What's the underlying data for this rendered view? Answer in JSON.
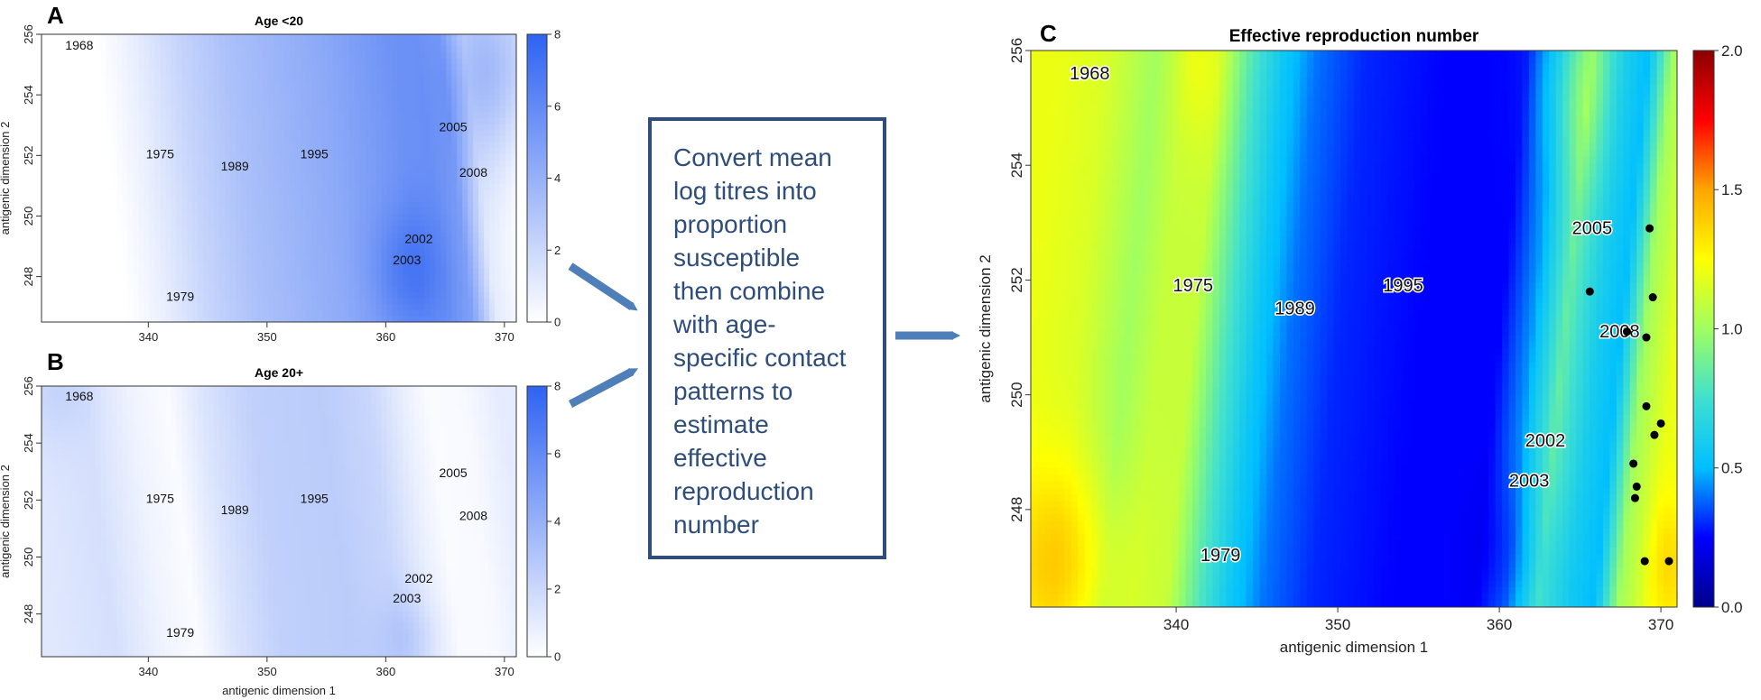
{
  "colors": {
    "blue_scale": [
      "#ffffff",
      "#2e63f2"
    ],
    "jet_scale": [
      "#00008b",
      "#0000ff",
      "#00bfff",
      "#40e0d0",
      "#a0ff60",
      "#ffff00",
      "#ffa500",
      "#ff0000",
      "#8b0000"
    ],
    "arrow": "#4f7fb8",
    "box_border": "#2e4d7b"
  },
  "middle_box": {
    "lines": [
      "Convert mean",
      "log titres into",
      "proportion",
      "susceptible",
      "then combine",
      "with age-",
      "specific contact",
      "patterns to",
      "estimate",
      "effective",
      "reproduction",
      "number"
    ]
  },
  "chart_data": [
    {
      "panel": "A",
      "type": "heatmap",
      "title": "Age <20",
      "xlabel": "",
      "ylabel": "antigenic dimension 2",
      "xlim": [
        331,
        371
      ],
      "ylim": [
        246.5,
        256
      ],
      "xticks": [
        340,
        350,
        360,
        370
      ],
      "yticks": [
        248,
        250,
        252,
        254,
        256
      ],
      "colorbar": {
        "min": 0,
        "max": 8,
        "ticks": [
          0,
          2,
          4,
          6,
          8
        ],
        "scale": "white-blue"
      },
      "x_profile": {
        "x": [
          331,
          337,
          340,
          344,
          348,
          352,
          356,
          360,
          362,
          364,
          366,
          368,
          371
        ],
        "v": [
          0.0,
          0.0,
          0.8,
          2.2,
          3.2,
          3.8,
          4.4,
          5.2,
          5.6,
          5.6,
          4.8,
          1.0,
          0.0
        ]
      },
      "hotspots": [
        {
          "x": 369,
          "y": 255,
          "sx": 3.5,
          "sy": 3.2,
          "v": 3.2
        },
        {
          "x": 362,
          "y": 248.2,
          "sx": 3,
          "sy": 2,
          "v": 1.6
        }
      ],
      "strains": [
        {
          "label": "1968",
          "x": 333,
          "y": 255.5
        },
        {
          "label": "1975",
          "x": 339.8,
          "y": 251.9
        },
        {
          "label": "1979",
          "x": 341.5,
          "y": 247.2
        },
        {
          "label": "1989",
          "x": 346.1,
          "y": 251.5
        },
        {
          "label": "1995",
          "x": 352.8,
          "y": 251.9
        },
        {
          "label": "2005",
          "x": 364.5,
          "y": 252.8
        },
        {
          "label": "2008",
          "x": 366.2,
          "y": 251.3
        },
        {
          "label": "2002",
          "x": 361.6,
          "y": 249.1
        },
        {
          "label": "2003",
          "x": 360.6,
          "y": 248.4
        }
      ]
    },
    {
      "panel": "B",
      "type": "heatmap",
      "title": "Age 20+",
      "xlabel": "antigenic dimension 1",
      "ylabel": "antigenic dimension 2",
      "xlim": [
        331,
        371
      ],
      "ylim": [
        246.5,
        256
      ],
      "xticks": [
        340,
        350,
        360,
        370
      ],
      "yticks": [
        248,
        250,
        252,
        254,
        256
      ],
      "colorbar": {
        "min": 0,
        "max": 8,
        "ticks": [
          0,
          2,
          4,
          6,
          8
        ],
        "scale": "white-blue"
      },
      "x_profile": {
        "x": [
          331,
          336,
          340,
          343,
          346,
          350,
          356,
          360,
          363,
          365,
          368,
          371
        ],
        "v": [
          1.2,
          1.6,
          0.6,
          0.2,
          1.4,
          2.4,
          2.6,
          2.1,
          0.8,
          0.2,
          0.3,
          1.0
        ]
      },
      "hotspots": [
        {
          "x": 362,
          "y": 247.2,
          "sx": 2.5,
          "sy": 1.5,
          "v": 1.0
        },
        {
          "x": 332,
          "y": 256,
          "sx": 3,
          "sy": 2,
          "v": 0.8
        }
      ],
      "strains": [
        {
          "label": "1968",
          "x": 333,
          "y": 255.5
        },
        {
          "label": "1975",
          "x": 339.8,
          "y": 251.9
        },
        {
          "label": "1979",
          "x": 341.5,
          "y": 247.2
        },
        {
          "label": "1989",
          "x": 346.1,
          "y": 251.5
        },
        {
          "label": "1995",
          "x": 352.8,
          "y": 251.9
        },
        {
          "label": "2005",
          "x": 364.5,
          "y": 252.8
        },
        {
          "label": "2008",
          "x": 366.2,
          "y": 251.3
        },
        {
          "label": "2002",
          "x": 361.6,
          "y": 249.1
        },
        {
          "label": "2003",
          "x": 360.6,
          "y": 248.4
        }
      ]
    },
    {
      "panel": "C",
      "type": "heatmap",
      "title": "Effective reproduction number",
      "xlabel": "antigenic dimension 1",
      "ylabel": "antigenic dimension 2",
      "xlim": [
        331,
        371
      ],
      "ylim": [
        246.3,
        256
      ],
      "xticks": [
        340,
        350,
        360,
        370
      ],
      "yticks": [
        248,
        250,
        252,
        254,
        256
      ],
      "colorbar": {
        "min": 0.0,
        "max": 2.0,
        "ticks": [
          0.0,
          0.5,
          1.0,
          1.5,
          2.0
        ],
        "tick_labels": [
          "0.0",
          "0.5",
          "1.0",
          "1.5",
          "2.0"
        ],
        "scale": "jet"
      },
      "x_profile": {
        "x": [
          331,
          334,
          337,
          339,
          341,
          343,
          345,
          347,
          350,
          355,
          360,
          362,
          364,
          366,
          367.5,
          369,
          371
        ],
        "v": [
          1.2,
          1.15,
          1.0,
          1.1,
          1.1,
          0.8,
          0.55,
          0.4,
          0.3,
          0.25,
          0.25,
          0.45,
          0.85,
          0.6,
          0.5,
          1.0,
          1.2
        ]
      },
      "hotspots": [
        {
          "x": 333,
          "y": 247,
          "sx": 3.5,
          "sy": 1.8,
          "v": 0.25
        },
        {
          "x": 364.5,
          "y": 255.5,
          "sx": 2.2,
          "sy": 1.8,
          "v": 0.2
        },
        {
          "x": 341.5,
          "y": 255.8,
          "sx": 1.6,
          "sy": 1.5,
          "v": 0.1
        },
        {
          "x": 361.5,
          "y": 247,
          "sx": 2.5,
          "sy": 1.5,
          "v": -0.12
        },
        {
          "x": 370.5,
          "y": 247,
          "sx": 1.2,
          "sy": 1.2,
          "v": 0.15
        }
      ],
      "strains": [
        {
          "label": "1968",
          "x": 333.4,
          "y": 255.5
        },
        {
          "label": "1975",
          "x": 339.8,
          "y": 251.8
        },
        {
          "label": "1979",
          "x": 341.5,
          "y": 247.1
        },
        {
          "label": "1989",
          "x": 346.1,
          "y": 251.4
        },
        {
          "label": "1995",
          "x": 352.8,
          "y": 251.8
        },
        {
          "label": "2005",
          "x": 364.5,
          "y": 252.8
        },
        {
          "label": "2008",
          "x": 366.2,
          "y": 251.0
        },
        {
          "label": "2002",
          "x": 361.6,
          "y": 249.1
        },
        {
          "label": "2003",
          "x": 360.6,
          "y": 248.4
        }
      ],
      "points": [
        {
          "x": 369.3,
          "y": 252.9
        },
        {
          "x": 365.6,
          "y": 251.8
        },
        {
          "x": 369.5,
          "y": 251.7
        },
        {
          "x": 367.9,
          "y": 251.1
        },
        {
          "x": 369.1,
          "y": 251.0
        },
        {
          "x": 369.1,
          "y": 249.8
        },
        {
          "x": 370.0,
          "y": 249.5
        },
        {
          "x": 369.6,
          "y": 249.3
        },
        {
          "x": 368.3,
          "y": 248.8
        },
        {
          "x": 368.5,
          "y": 248.4
        },
        {
          "x": 368.4,
          "y": 248.2
        },
        {
          "x": 369.0,
          "y": 247.1
        },
        {
          "x": 370.5,
          "y": 247.1
        }
      ]
    }
  ]
}
